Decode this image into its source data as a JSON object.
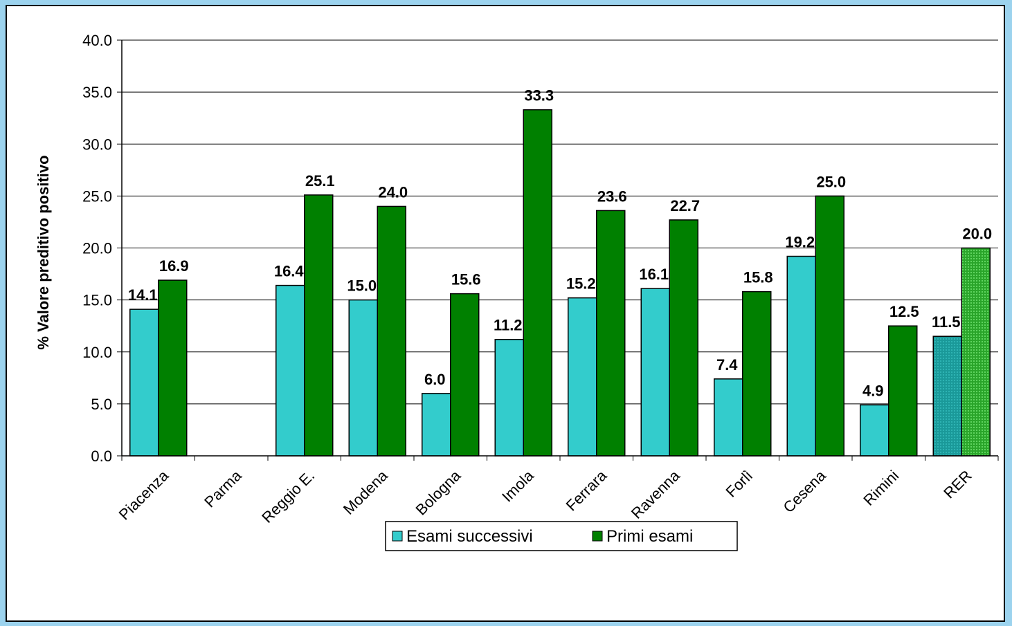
{
  "chart_data": {
    "type": "bar",
    "title": "",
    "xlabel": "",
    "ylabel": "% Valore preditivo positivo",
    "ylim": [
      0,
      40
    ],
    "yticks": [
      "0.0",
      "5.0",
      "10.0",
      "15.0",
      "20.0",
      "25.0",
      "30.0",
      "35.0",
      "40.0"
    ],
    "grid": true,
    "legend_position": "bottom",
    "categories": [
      "Piacenza",
      "Parma",
      "Reggio E.",
      "Modena",
      "Bologna",
      "Imola",
      "Ferrara",
      "Ravenna",
      "Forlì",
      "Cesena",
      "Rimini",
      "RER"
    ],
    "series": [
      {
        "name": "Esami successivi",
        "color": "#33cccc",
        "values": [
          14.1,
          null,
          16.4,
          15.0,
          6.0,
          11.2,
          15.2,
          16.1,
          7.4,
          19.2,
          4.9,
          11.5
        ],
        "labels": [
          "14.1",
          "",
          "16.4",
          "15.0",
          "6.0",
          "11.2",
          "15.2",
          "16.1",
          "7.4",
          "19.2",
          "4.9",
          "11.5"
        ]
      },
      {
        "name": "Primi esami",
        "color": "#008000",
        "values": [
          16.9,
          null,
          25.1,
          24.0,
          15.6,
          33.3,
          23.6,
          22.7,
          15.8,
          25.0,
          12.5,
          20.0
        ],
        "labels": [
          "16.9",
          "",
          "25.1",
          "24.0",
          "15.6",
          "33.3",
          "23.6",
          "22.7",
          "15.8",
          "25.0",
          "12.5",
          "20.0"
        ]
      }
    ],
    "highlight_category": "RER",
    "highlight_colors": [
      "#1a9999",
      "#33bb33"
    ]
  }
}
